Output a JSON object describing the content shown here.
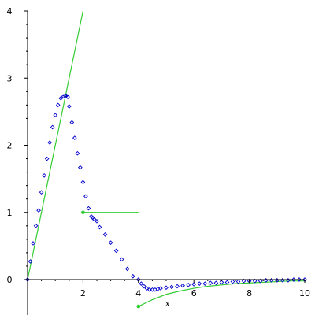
{
  "chart_data": {
    "type": "scatter",
    "title": "",
    "xlabel": "x",
    "ylabel": "",
    "xlim": [
      0,
      10
    ],
    "ylim": [
      -0.4,
      4
    ],
    "grid": false,
    "x_ticks": [
      "2",
      "4",
      "6",
      "8",
      "10"
    ],
    "y_ticks": [
      "0",
      "1",
      "2",
      "3",
      "4"
    ],
    "colors": {
      "points": "#0000cc",
      "lines": "#33cc33"
    },
    "series": [
      {
        "kind": "points",
        "x": [
          0.0,
          0.1,
          0.2,
          0.3,
          0.4,
          0.5,
          0.6,
          0.7,
          0.8,
          0.9,
          1.0,
          1.1,
          1.2,
          1.3,
          1.35,
          1.4,
          1.45,
          1.5,
          1.6,
          1.7,
          1.8,
          1.9,
          2.0,
          2.1,
          2.2,
          2.3,
          2.35,
          2.4,
          2.5,
          2.6,
          2.8,
          3.0,
          3.2,
          3.4,
          3.6,
          3.8,
          4.0,
          4.1,
          4.2,
          4.3,
          4.4,
          4.5,
          4.6,
          4.7,
          4.8,
          5.0,
          5.2,
          5.4,
          5.6,
          5.8,
          6.0,
          6.2,
          6.4,
          6.6,
          6.8,
          7.0,
          7.2,
          7.4,
          7.6,
          7.8,
          8.0,
          8.2,
          8.4,
          8.6,
          8.8,
          9.0,
          9.2,
          9.4,
          9.6,
          9.8,
          10.0
        ],
        "y": [
          0.0,
          0.27,
          0.54,
          0.8,
          1.03,
          1.3,
          1.55,
          1.8,
          2.04,
          2.27,
          2.45,
          2.6,
          2.7,
          2.73,
          2.74,
          2.74,
          2.72,
          2.58,
          2.34,
          2.11,
          1.88,
          1.67,
          1.45,
          1.24,
          1.06,
          0.94,
          0.92,
          0.9,
          0.87,
          0.78,
          0.67,
          0.55,
          0.43,
          0.3,
          0.16,
          0.05,
          0.0,
          -0.06,
          -0.1,
          -0.13,
          -0.15,
          -0.15,
          -0.15,
          -0.14,
          -0.13,
          -0.12,
          -0.11,
          -0.1,
          -0.09,
          -0.08,
          -0.07,
          -0.06,
          -0.06,
          -0.05,
          -0.05,
          -0.04,
          -0.04,
          -0.03,
          -0.03,
          -0.02,
          -0.02,
          -0.02,
          -0.02,
          -0.01,
          -0.01,
          -0.01,
          -0.01,
          -0.01,
          0.0,
          0.0,
          0.0
        ]
      },
      {
        "kind": "line",
        "x": [
          0,
          2
        ],
        "y": [
          0,
          4
        ]
      },
      {
        "kind": "line",
        "x": [
          2,
          4
        ],
        "y": [
          1,
          1
        ]
      },
      {
        "kind": "line",
        "x": [
          4,
          4.5,
          5,
          5.5,
          6,
          6.5,
          7,
          7.5,
          8,
          8.5,
          9,
          9.5,
          10
        ],
        "y": [
          -0.4,
          -0.3,
          -0.22,
          -0.17,
          -0.13,
          -0.1,
          -0.08,
          -0.06,
          -0.05,
          -0.04,
          -0.03,
          -0.02,
          -0.02
        ]
      }
    ],
    "markers": [
      {
        "x": 2,
        "y": 1
      },
      {
        "x": 4,
        "y": -0.4
      }
    ]
  }
}
